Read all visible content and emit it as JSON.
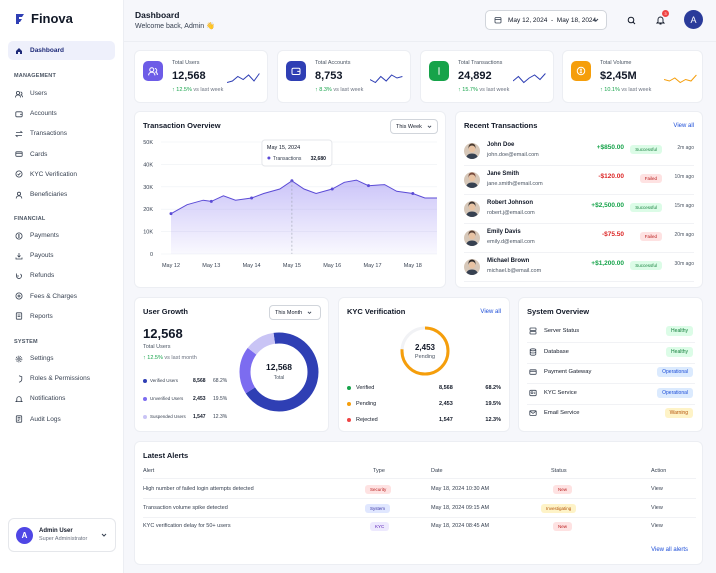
{
  "brand": {
    "name": "Finova",
    "logo_color": "#2f3fb4"
  },
  "sidebar": {
    "main": [
      {
        "label": "Dashboard",
        "icon": "home-icon"
      }
    ],
    "management_title": "MANAGEMENT",
    "management": [
      {
        "label": "Users",
        "icon": "users-icon"
      },
      {
        "label": "Accounts",
        "icon": "wallet-icon"
      },
      {
        "label": "Transactions",
        "icon": "transfer-icon"
      },
      {
        "label": "Cards",
        "icon": "card-icon"
      },
      {
        "label": "KYC Verification",
        "icon": "badge-check-icon"
      },
      {
        "label": "Beneficiaries",
        "icon": "people-icon"
      }
    ],
    "financial_title": "FINANCIAL",
    "financial": [
      {
        "label": "Payments",
        "icon": "payment-icon"
      },
      {
        "label": "Payouts",
        "icon": "payout-icon"
      },
      {
        "label": "Refunds",
        "icon": "refund-icon"
      },
      {
        "label": "Fees & Charges",
        "icon": "fee-icon"
      },
      {
        "label": "Reports",
        "icon": "report-icon"
      }
    ],
    "system_title": "SYSTEM",
    "system": [
      {
        "label": "Settings",
        "icon": "gear-icon"
      },
      {
        "label": "Roles & Permissions",
        "icon": "shield-icon"
      },
      {
        "label": "Notifications",
        "icon": "bell-icon"
      },
      {
        "label": "Audit Logs",
        "icon": "log-icon"
      }
    ],
    "user": {
      "initial": "A",
      "name": "Admin User",
      "role": "Super Administrator"
    }
  },
  "header": {
    "title": "Dashboard",
    "subtitle": "Welcome back, Admin 👋",
    "date_range": "May 12, 2024  -  May 18, 2024",
    "notif_count": "3",
    "avatar": "A"
  },
  "kpis": [
    {
      "label": "Total Users",
      "value": "12,568",
      "delta": "↑ 12.5%",
      "suffix": "vs last week",
      "color": "#6d5ce7",
      "icon": "users-icon",
      "spark": "#2f3fb4"
    },
    {
      "label": "Total Accounts",
      "value": "8,753",
      "delta": "↑ 8.3%",
      "suffix": "vs last week",
      "color": "#2f3fb4",
      "icon": "wallet-icon",
      "spark": "#2f3fb4"
    },
    {
      "label": "Total Transactions",
      "value": "24,892",
      "delta": "↑ 15.7%",
      "suffix": "vs last week",
      "color": "#16a34a",
      "icon": "dollar-icon",
      "spark": "#2f3fb4"
    },
    {
      "label": "Total Volume",
      "value": "$2,45M",
      "delta": "↑ 10.1%",
      "suffix": "vs last week",
      "color": "#f59e0b",
      "icon": "coin-icon",
      "spark": "#f59e0b"
    }
  ],
  "overview": {
    "title": "Transaction Overview",
    "range": "This Week",
    "tooltip_date": "May 15, 2024",
    "tooltip_label": "Transactions",
    "tooltip_value": "32,680"
  },
  "chart_data": {
    "type": "area",
    "x": [
      "May 12",
      "May 13",
      "May 14",
      "May 15",
      "May 16",
      "May 17",
      "May 18"
    ],
    "y_ticks": [
      "0",
      "10K",
      "20K",
      "30K",
      "40K",
      "50K"
    ],
    "ylim": [
      0,
      50000
    ],
    "points": [
      [
        0,
        18000
      ],
      [
        0.4,
        22000
      ],
      [
        0.8,
        24000
      ],
      [
        1.0,
        23500
      ],
      [
        1.3,
        26000
      ],
      [
        1.6,
        24000
      ],
      [
        2.0,
        25000
      ],
      [
        2.3,
        27000
      ],
      [
        2.7,
        29000
      ],
      [
        3.0,
        32680
      ],
      [
        3.3,
        29000
      ],
      [
        3.6,
        27000
      ],
      [
        4.0,
        29000
      ],
      [
        4.3,
        32000
      ],
      [
        4.6,
        33000
      ],
      [
        4.9,
        30500
      ],
      [
        5.3,
        31000
      ],
      [
        5.6,
        28000
      ],
      [
        6.0,
        27000
      ],
      [
        6.3,
        25000
      ],
      [
        6.6,
        25000
      ]
    ]
  },
  "recent": {
    "title": "Recent Transactions",
    "view_all": "View all",
    "items": [
      {
        "name": "John Doe",
        "email": "john.doe@email.com",
        "amount": "+$850.00",
        "status": "Successful",
        "time": "2m ago",
        "positive": true
      },
      {
        "name": "Jane Smith",
        "email": "jane.smith@email.com",
        "amount": "-$120.00",
        "status": "Failed",
        "time": "10m ago",
        "positive": false
      },
      {
        "name": "Robert Johnson",
        "email": "robert.j@email.com",
        "amount": "+$2,500.00",
        "status": "Successful",
        "time": "15m ago",
        "positive": true
      },
      {
        "name": "Emily Davis",
        "email": "emily.d@email.com",
        "amount": "-$75.50",
        "status": "Failed",
        "time": "20m ago",
        "positive": false
      },
      {
        "name": "Michael Brown",
        "email": "michael.b@email.com",
        "amount": "+$1,200.00",
        "status": "Successful",
        "time": "30m ago",
        "positive": true
      }
    ]
  },
  "growth": {
    "title": "User Growth",
    "range": "This Month",
    "total": "12,568",
    "total_label": "Total Users",
    "delta": "↑ 12.5%",
    "suffix": "vs last month",
    "center_value": "12,568",
    "center_label": "Total",
    "rows": [
      {
        "label": "Verified Users",
        "value": "8,568",
        "pct": "68.2%",
        "color": "#2f3fb4",
        "frac": 0.682
      },
      {
        "label": "Unverified Users",
        "value": "2,453",
        "pct": "19.5%",
        "color": "#7c6cf0",
        "frac": 0.195
      },
      {
        "label": "Suspended Users",
        "value": "1,547",
        "pct": "12.3%",
        "color": "#c9c4f5",
        "frac": 0.123
      }
    ]
  },
  "kyc": {
    "title": "KYC Verification",
    "view_all": "View all",
    "center_value": "2,453",
    "center_label": "Pending",
    "rows": [
      {
        "label": "Verified",
        "value": "8,568",
        "pct": "68.2%",
        "color": "#16a34a"
      },
      {
        "label": "Pending",
        "value": "2,453",
        "pct": "19.5%",
        "color": "#f59e0b"
      },
      {
        "label": "Rejected",
        "value": "1,547",
        "pct": "12.3%",
        "color": "#ef4444"
      }
    ]
  },
  "system": {
    "title": "System Overview",
    "rows": [
      {
        "label": "Server Status",
        "status": "Healthy",
        "bg": "#dcfce7",
        "fg": "#15803d",
        "icon": "server-icon"
      },
      {
        "label": "Database",
        "status": "Healthy",
        "bg": "#dcfce7",
        "fg": "#15803d",
        "icon": "database-icon"
      },
      {
        "label": "Payment Gateway",
        "status": "Operational",
        "bg": "#dbeafe",
        "fg": "#1d4ed8",
        "icon": "gateway-icon"
      },
      {
        "label": "KYC Service",
        "status": "Operational",
        "bg": "#dbeafe",
        "fg": "#1d4ed8",
        "icon": "kyc-icon"
      },
      {
        "label": "Email Service",
        "status": "Warning",
        "bg": "#fef3c7",
        "fg": "#b45309",
        "icon": "mail-icon"
      }
    ]
  },
  "alerts": {
    "title": "Latest Alerts",
    "view_all": "View all alerts",
    "headers": [
      "Alert",
      "Type",
      "Date",
      "Status",
      "Action"
    ],
    "rows": [
      {
        "alert": "High number of failed login attempts detected",
        "type": "Security",
        "type_bg": "#fee2e2",
        "type_fg": "#b91c1c",
        "date": "May 18, 2024 10:30 AM",
        "status": "New",
        "status_bg": "#fee2e2",
        "status_fg": "#b91c1c",
        "action": "View"
      },
      {
        "alert": "Transaction volume spike detected",
        "type": "System",
        "type_bg": "#e0e7ff",
        "type_fg": "#3730a3",
        "date": "May 18, 2024 09:15 AM",
        "status": "Investigating",
        "status_bg": "#fef3c7",
        "status_fg": "#b45309",
        "action": "View"
      },
      {
        "alert": "KYC verification delay for 50+ users",
        "type": "KYC",
        "type_bg": "#ede9fe",
        "type_fg": "#5b21b6",
        "date": "May 18, 2024 08:45 AM",
        "status": "New",
        "status_bg": "#fee2e2",
        "status_fg": "#b91c1c",
        "action": "View"
      }
    ]
  }
}
